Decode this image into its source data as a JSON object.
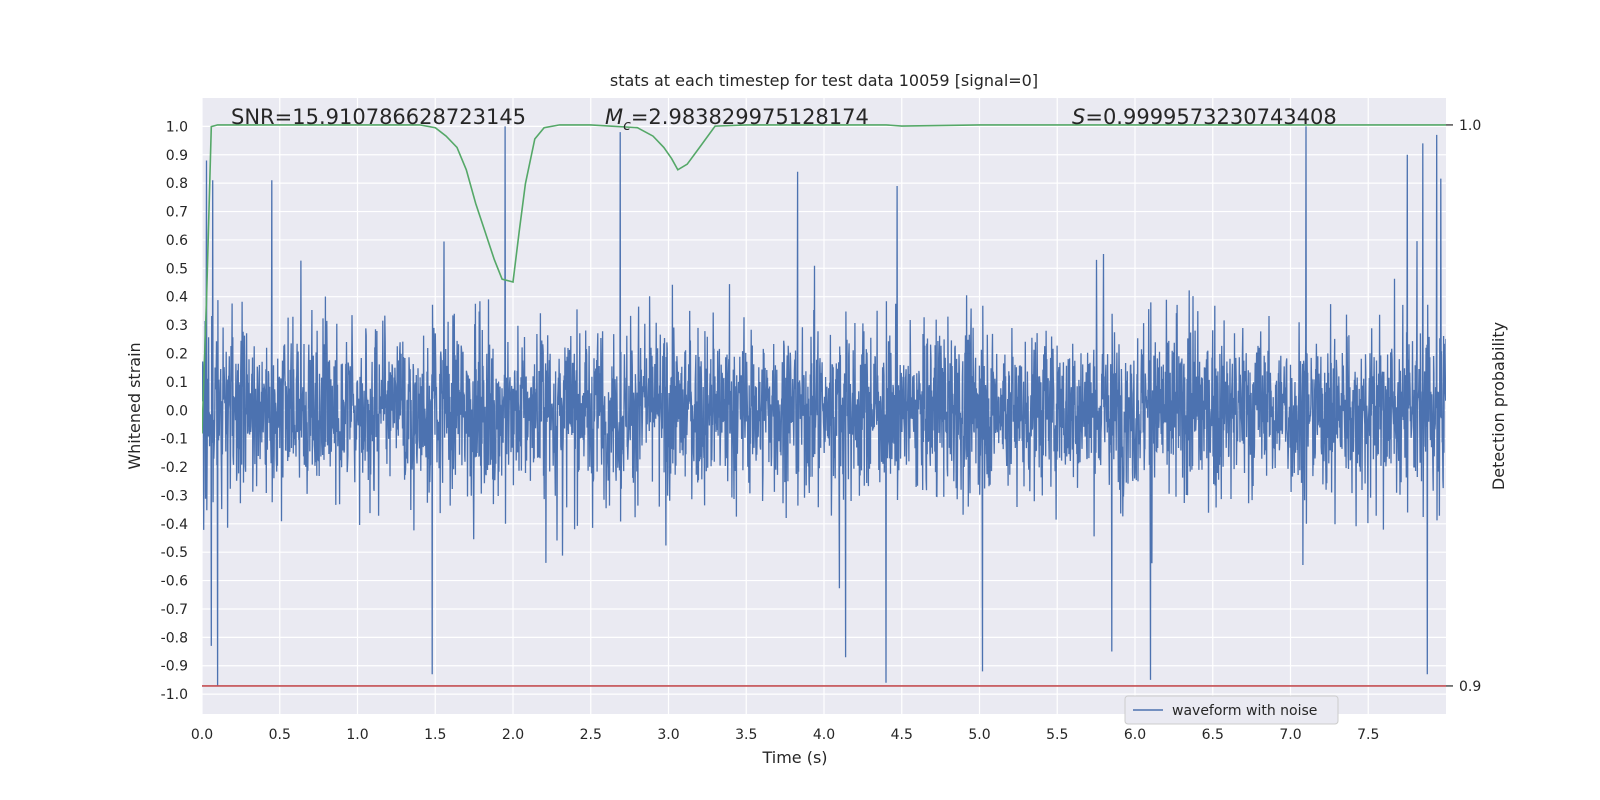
{
  "chart_data": {
    "type": "line",
    "title": "stats at each timestep for test data 10059 [signal=0]",
    "xlabel": "Time (s)",
    "ylabel": "Whitened strain",
    "y2label": "Detection probability",
    "xlim": [
      0.0,
      8.0
    ],
    "ylim": [
      -1.07,
      1.1
    ],
    "y2lim": [
      0.895,
      1.0048
    ],
    "x_ticks": [
      "0.0",
      "0.5",
      "1.0",
      "1.5",
      "2.0",
      "2.5",
      "3.0",
      "3.5",
      "4.0",
      "4.5",
      "5.0",
      "5.5",
      "6.0",
      "6.5",
      "7.0",
      "7.5"
    ],
    "y_ticks": [
      "1.0",
      "0.9",
      "0.8",
      "0.7",
      "0.6",
      "0.5",
      "0.4",
      "0.3",
      "0.2",
      "0.1",
      "0.0",
      "-0.1",
      "-0.2",
      "-0.3",
      "-0.4",
      "-0.5",
      "-0.6",
      "-0.7",
      "-0.8",
      "-0.9",
      "-1.0"
    ],
    "y2_ticks": [
      "1.0",
      "0.9"
    ],
    "grid": true,
    "legend_position": "lower-right",
    "annotations": {
      "snr": "SNR=15.910786628723145",
      "mc_symbol": "M",
      "mc_sub": "c",
      "mc_value": "=2.983829975128174",
      "s_symbol": "S",
      "s_value": "=0.9999573230743408"
    },
    "series": [
      {
        "name": "waveform with noise",
        "axis": "left",
        "color": "#4c72b0",
        "noise_envelope": {
          "typical_amplitude": 0.32,
          "max": 1.0,
          "min": -0.97
        },
        "spikes": [
          {
            "x": 0.03,
            "y": 0.88
          },
          {
            "x": 0.07,
            "y": 0.81
          },
          {
            "x": 0.06,
            "y": -0.83
          },
          {
            "x": 0.1,
            "y": -0.97
          },
          {
            "x": 0.45,
            "y": 0.81
          },
          {
            "x": 1.48,
            "y": -0.93
          },
          {
            "x": 1.95,
            "y": 1.0
          },
          {
            "x": 2.69,
            "y": 0.98
          },
          {
            "x": 3.83,
            "y": 0.84
          },
          {
            "x": 4.4,
            "y": -0.96
          },
          {
            "x": 4.47,
            "y": 0.79
          },
          {
            "x": 4.14,
            "y": -0.87
          },
          {
            "x": 5.02,
            "y": -0.92
          },
          {
            "x": 5.85,
            "y": -0.85
          },
          {
            "x": 6.1,
            "y": -0.95
          },
          {
            "x": 7.1,
            "y": 1.0
          },
          {
            "x": 7.75,
            "y": 0.9
          },
          {
            "x": 7.85,
            "y": 0.94
          },
          {
            "x": 7.94,
            "y": 0.97
          },
          {
            "x": 7.88,
            "y": -0.93
          }
        ]
      },
      {
        "name": "",
        "axis": "right",
        "color": "#55a868",
        "x": [
          0.0,
          0.03,
          0.06,
          0.1,
          0.5,
          1.0,
          1.4,
          1.5,
          1.57,
          1.64,
          1.7,
          1.76,
          1.82,
          1.88,
          1.93,
          2.0,
          2.04,
          2.08,
          2.14,
          2.2,
          2.3,
          2.5,
          2.8,
          2.9,
          2.97,
          3.02,
          3.06,
          3.12,
          3.2,
          3.3,
          3.5,
          4.0,
          4.4,
          4.5,
          5.0,
          6.0,
          7.0,
          8.0
        ],
        "y": [
          0.945,
          0.97,
          0.9997,
          1.0,
          1.0,
          1.0,
          1.0,
          0.9995,
          0.998,
          0.996,
          0.992,
          0.986,
          0.981,
          0.976,
          0.9725,
          0.972,
          0.981,
          0.9895,
          0.9975,
          0.9995,
          1.0,
          1.0,
          0.9995,
          0.998,
          0.996,
          0.994,
          0.992,
          0.993,
          0.996,
          0.9998,
          1.0,
          1.0,
          1.0,
          0.9998,
          1.0,
          1.0,
          1.0,
          1.0
        ]
      },
      {
        "name": "",
        "axis": "right",
        "color": "#c44e52",
        "x": [
          0.0,
          8.0
        ],
        "y": [
          0.9,
          0.9
        ]
      }
    ]
  }
}
